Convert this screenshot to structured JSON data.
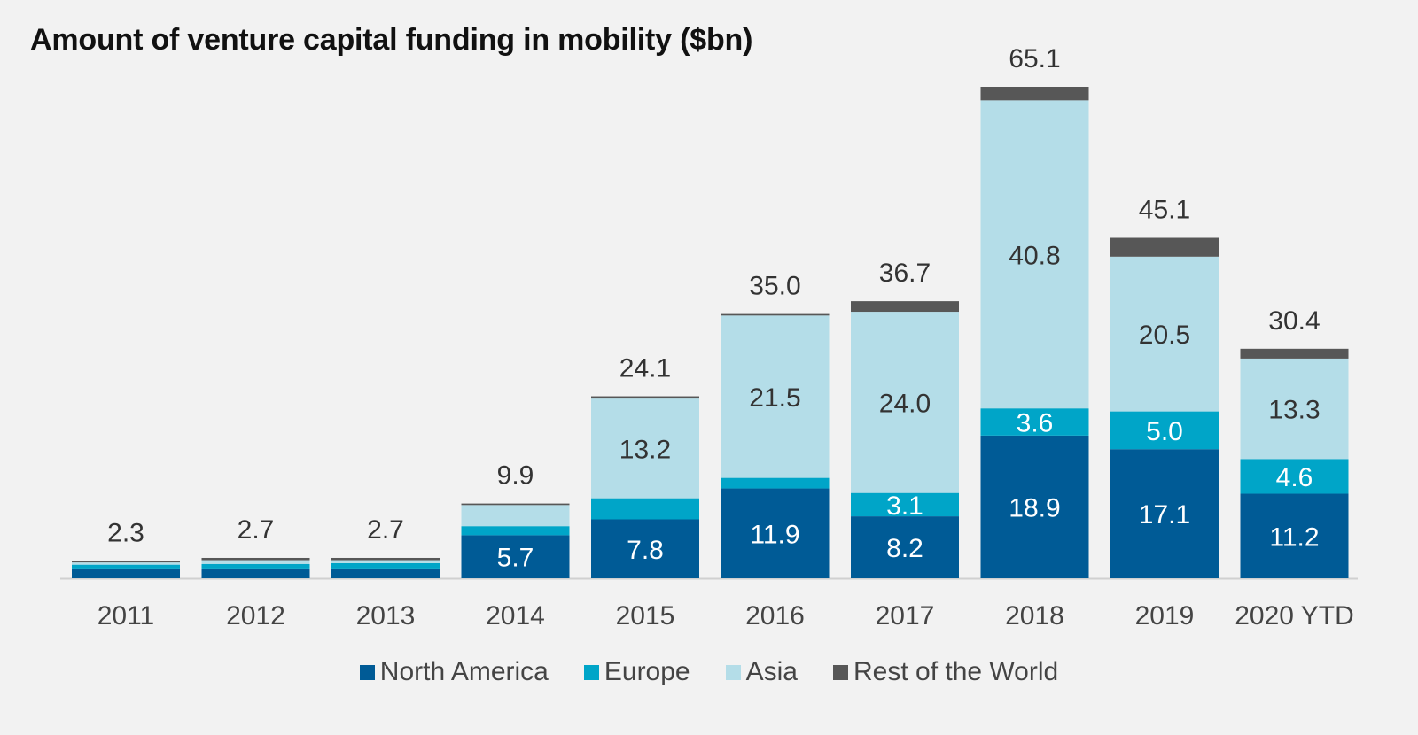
{
  "title": "Amount of venture capital funding in mobility ($bn)",
  "colors": {
    "background": "#f2f2f2",
    "axis": "#d0d0d0",
    "total_label": "#333333",
    "inner_label_dark": "#333333",
    "inner_label_light": "#ffffff"
  },
  "chart_data": {
    "type": "bar",
    "stacked": true,
    "title": "Amount of venture capital funding in mobility ($bn)",
    "xlabel": "",
    "ylabel": "",
    "ylim": [
      0,
      65.1
    ],
    "grid": false,
    "legend_position": "bottom",
    "categories": [
      "2011",
      "2012",
      "2013",
      "2014",
      "2015",
      "2016",
      "2017",
      "2018",
      "2019",
      "2020 YTD"
    ],
    "series": [
      {
        "name": "North America",
        "color": "#005b96",
        "values": [
          1.3,
          1.3,
          1.3,
          5.7,
          7.8,
          11.9,
          8.2,
          18.9,
          17.1,
          11.2
        ],
        "labels": [
          "",
          "",
          "",
          "5.7",
          "7.8",
          "11.9",
          "8.2",
          "18.9",
          "17.1",
          "11.2"
        ],
        "label_color": "#ffffff"
      },
      {
        "name": "Europe",
        "color": "#00a5c8",
        "values": [
          0.5,
          0.6,
          0.7,
          1.2,
          2.8,
          1.4,
          3.1,
          3.6,
          5.0,
          4.6
        ],
        "labels": [
          "",
          "",
          "",
          "",
          "",
          "",
          "3.1",
          "3.6",
          "5.0",
          "4.6"
        ],
        "label_color": "#ffffff"
      },
      {
        "name": "Asia",
        "color": "#b4dde8",
        "values": [
          0.3,
          0.5,
          0.4,
          2.8,
          13.2,
          21.5,
          24.0,
          40.8,
          20.5,
          13.3
        ],
        "labels": [
          "",
          "",
          "",
          "",
          "13.2",
          "21.5",
          "24.0",
          "40.8",
          "20.5",
          "13.3"
        ],
        "label_color": "#333333"
      },
      {
        "name": "Rest of the World",
        "color": "#575757",
        "values": [
          0.2,
          0.3,
          0.3,
          0.2,
          0.3,
          0.2,
          1.4,
          1.8,
          2.5,
          1.3
        ],
        "labels": [
          "",
          "",
          "",
          "",
          "",
          "",
          "",
          "",
          "",
          ""
        ],
        "label_color": "#ffffff"
      }
    ],
    "totals": [
      "2.3",
      "2.7",
      "2.7",
      "9.9",
      "24.1",
      "35.0",
      "36.7",
      "65.1",
      "45.1",
      "30.4"
    ]
  }
}
